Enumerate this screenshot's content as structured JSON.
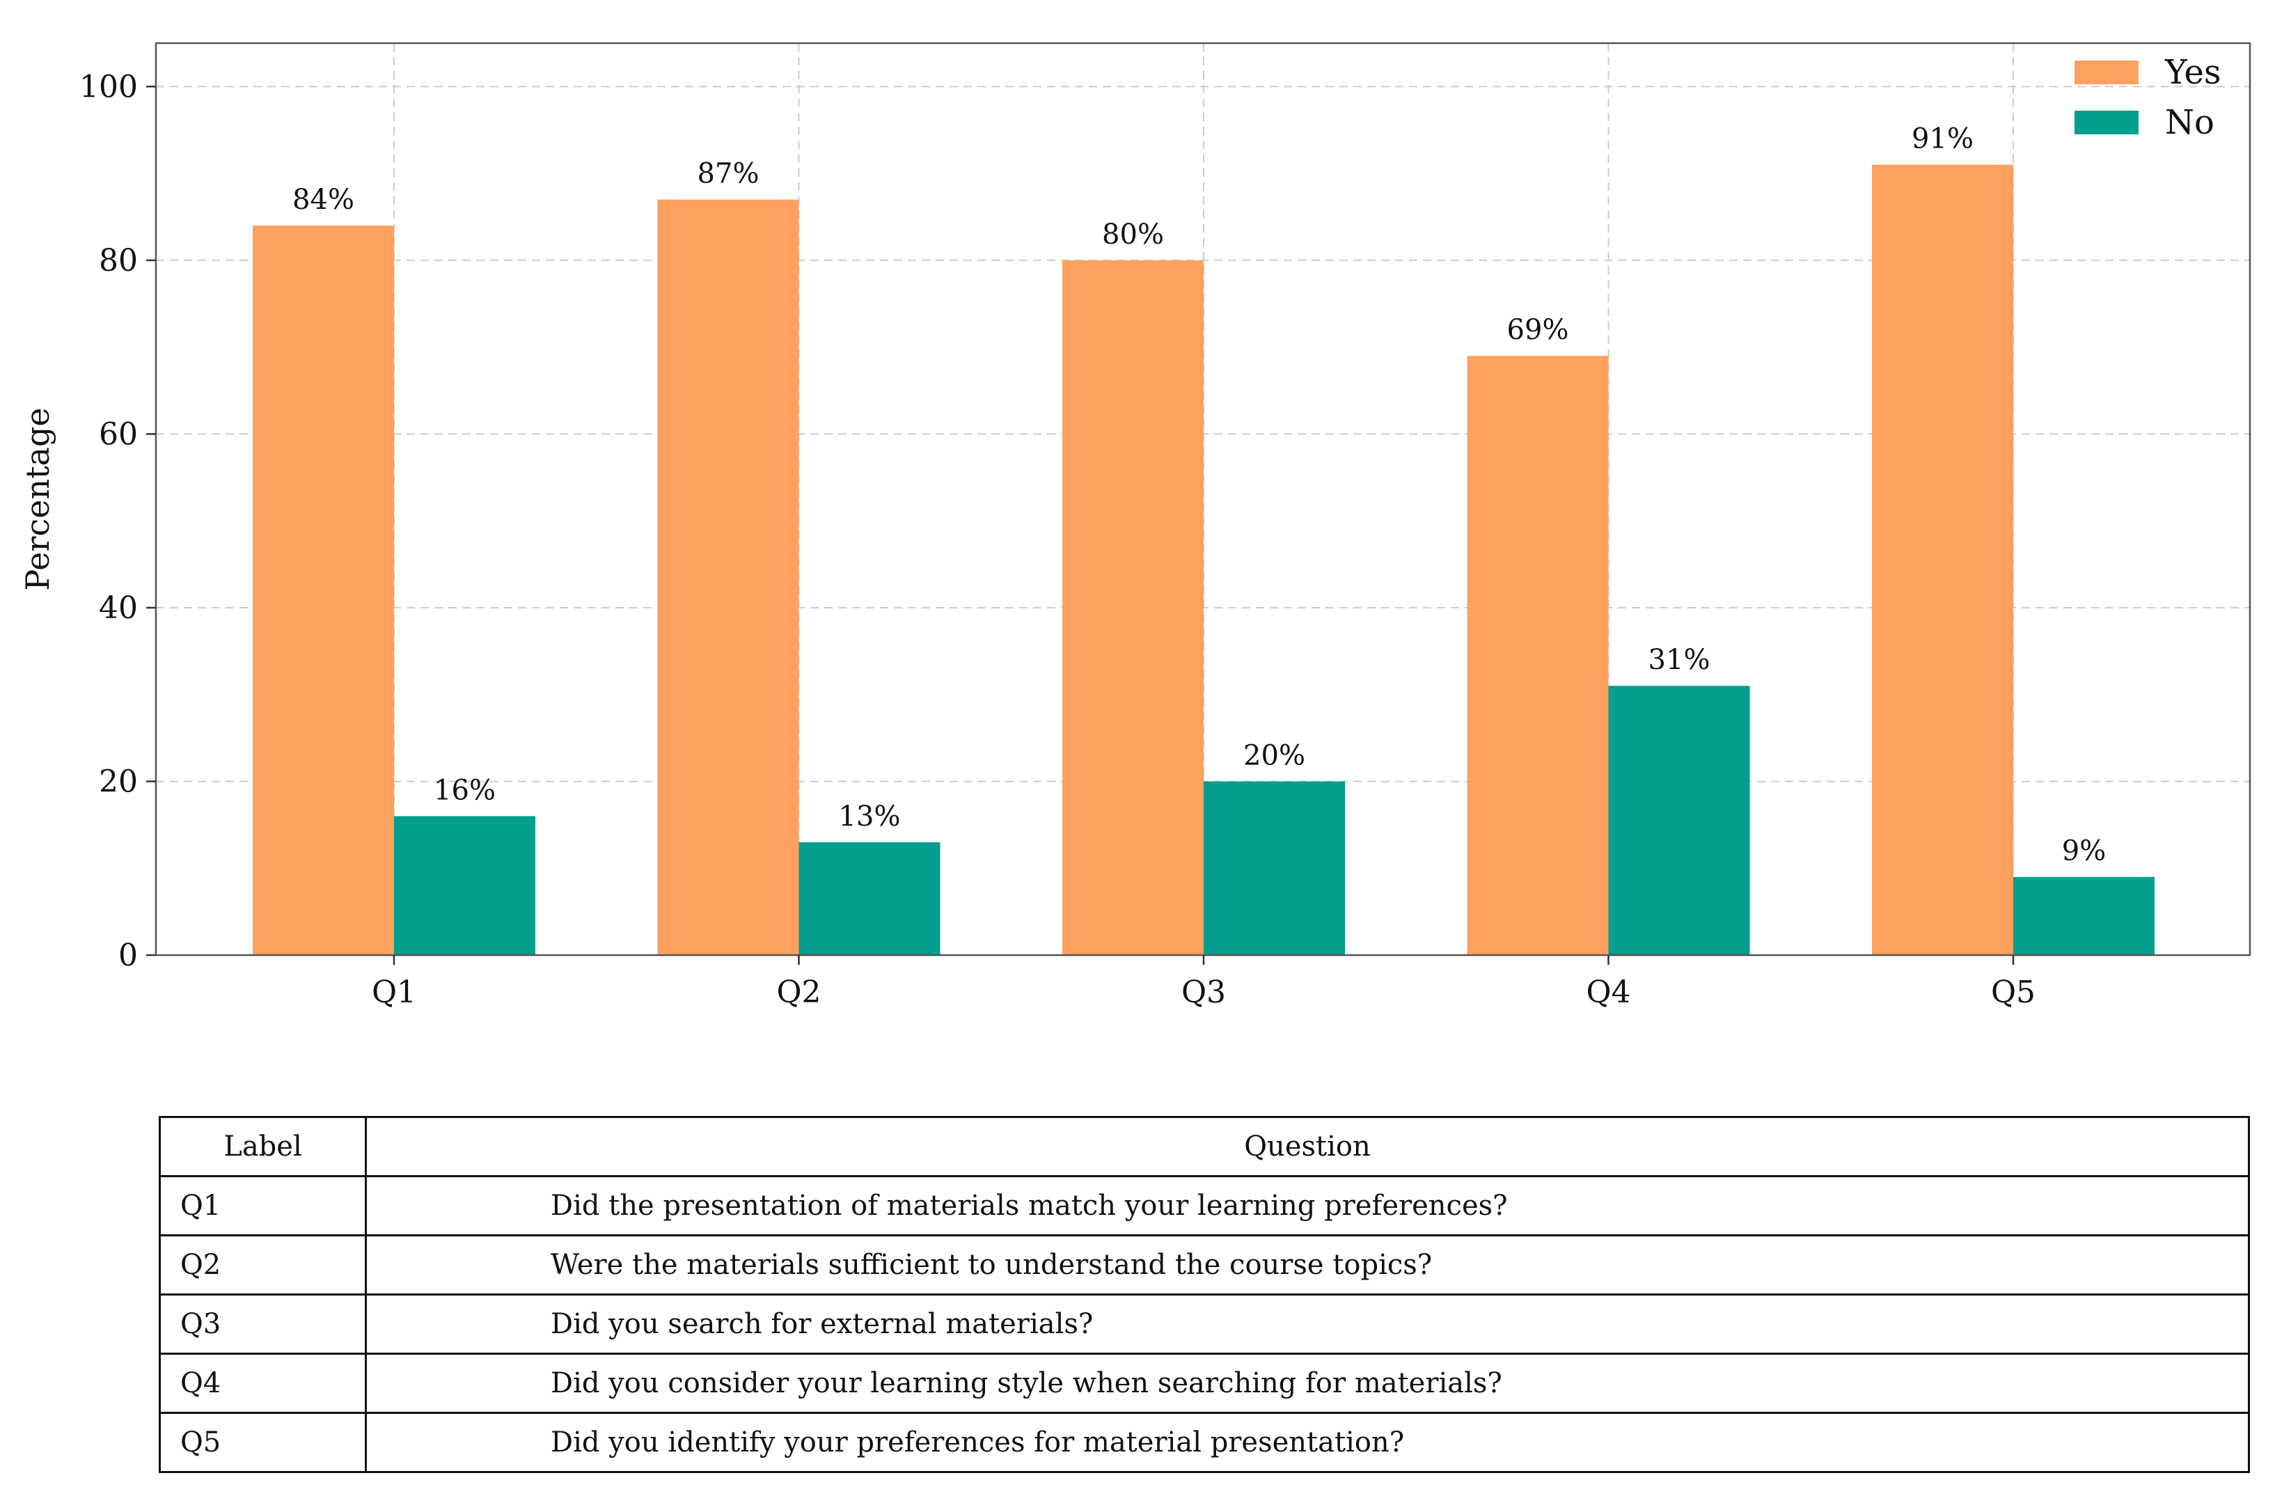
{
  "chart_data": {
    "type": "bar",
    "categories": [
      "Q1",
      "Q2",
      "Q3",
      "Q4",
      "Q5"
    ],
    "series": [
      {
        "name": "Yes",
        "color": "#FFA15E",
        "values": [
          84,
          87,
          80,
          69,
          91
        ],
        "labels": [
          "84%",
          "87%",
          "80%",
          "69%",
          "91%"
        ]
      },
      {
        "name": "No",
        "color": "#029E8E",
        "values": [
          16,
          13,
          20,
          31,
          9
        ],
        "labels": [
          "16%",
          "13%",
          "20%",
          "31%",
          "9%"
        ]
      }
    ],
    "title": "",
    "xlabel": "",
    "ylabel": "Percentage",
    "ylim": [
      0,
      105
    ],
    "yticks": [
      0,
      20,
      40,
      60,
      80,
      100
    ],
    "grid": true,
    "legend_position": "top-right"
  },
  "table": {
    "headers": {
      "label": "Label",
      "question": "Question"
    },
    "rows": [
      {
        "label": "Q1",
        "question": "Did the presentation of materials match your learning preferences?"
      },
      {
        "label": "Q2",
        "question": "Were the materials sufficient to understand the course topics?"
      },
      {
        "label": "Q3",
        "question": "Did you search for external materials?"
      },
      {
        "label": "Q4",
        "question": "Did you consider your learning style when searching for materials?"
      },
      {
        "label": "Q5",
        "question": "Did you identify your preferences for material presentation?"
      }
    ]
  }
}
